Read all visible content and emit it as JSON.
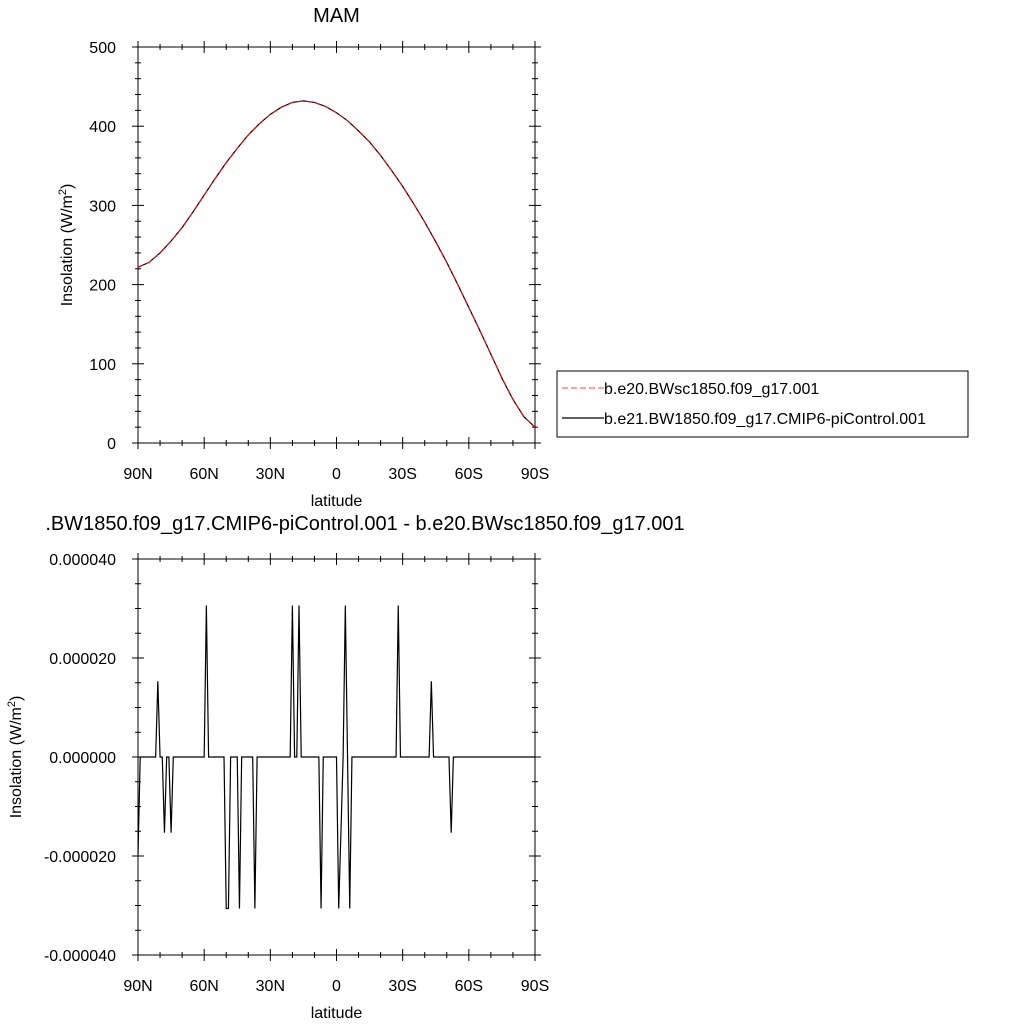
{
  "chart_data": [
    {
      "type": "line",
      "title": "MAM",
      "xlabel": "latitude",
      "ylabel": "Insolation (W/m",
      "ylabel_sup": "2",
      "ylabel_end": ")",
      "xlim": [
        90,
        -90
      ],
      "ylim": [
        0,
        500
      ],
      "xticks": [
        90,
        60,
        30,
        0,
        -30,
        -60,
        -90
      ],
      "xtick_labels": [
        "90N",
        "60N",
        "30N",
        "0",
        "30S",
        "60S",
        "90S"
      ],
      "yticks": [
        0,
        100,
        200,
        300,
        400,
        500
      ],
      "ytick_labels": [
        "0",
        "100",
        "200",
        "300",
        "400",
        "500"
      ],
      "x": [
        90,
        85,
        80,
        75,
        70,
        65,
        60,
        55,
        50,
        45,
        40,
        35,
        30,
        25,
        20,
        15,
        10,
        5,
        0,
        -5,
        -10,
        -15,
        -20,
        -25,
        -30,
        -35,
        -40,
        -45,
        -50,
        -55,
        -60,
        -65,
        -70,
        -75,
        -80,
        -85,
        -90
      ],
      "series": [
        {
          "name": "b.e20.BWsc1850.f09_g17.001",
          "color": "#ff0000",
          "dash": "dashed",
          "values": [
            222,
            228,
            240,
            255,
            272,
            292,
            313,
            334,
            354,
            372,
            389,
            403,
            415,
            424,
            430,
            432,
            430,
            425,
            417,
            407,
            394,
            380,
            363,
            344,
            324,
            302,
            279,
            254,
            228,
            200,
            171,
            142,
            112,
            82,
            55,
            33,
            20
          ]
        },
        {
          "name": "b.e21.BW1850.f09_g17.CMIP6-piControl.001",
          "color": "#000000",
          "dash": "solid",
          "values": [
            222,
            228,
            240,
            255,
            272,
            292,
            313,
            334,
            354,
            372,
            389,
            403,
            415,
            424,
            430,
            432,
            430,
            425,
            417,
            407,
            394,
            380,
            363,
            344,
            324,
            302,
            279,
            254,
            228,
            200,
            171,
            142,
            112,
            82,
            55,
            33,
            20
          ]
        }
      ],
      "legend": "right"
    },
    {
      "type": "line",
      "title": ".BW1850.f09_g17.CMIP6-piControl.001 - b.e20.BWsc1850.f09_g17.001",
      "xlabel": "latitude",
      "ylabel": "Insolation (W/m",
      "ylabel_sup": "2",
      "ylabel_end": ")",
      "xlim": [
        90,
        -90
      ],
      "ylim": [
        -4e-05,
        4e-05
      ],
      "xticks": [
        90,
        60,
        30,
        0,
        -30,
        -60,
        -90
      ],
      "xtick_labels": [
        "90N",
        "60N",
        "30N",
        "0",
        "30S",
        "60S",
        "90S"
      ],
      "yticks": [
        4e-05,
        2e-05,
        0,
        -2e-05,
        -4e-05
      ],
      "ytick_labels": [
        "0.000040",
        "0.000020",
        "0.000000",
        "-0.000020",
        "-0.000040"
      ],
      "x": [
        90,
        89,
        88,
        82,
        81,
        80,
        79,
        78,
        77,
        76,
        75,
        74,
        73,
        60,
        59,
        58,
        51,
        50,
        49,
        48,
        45,
        44,
        43,
        38,
        37,
        36,
        35,
        21,
        20,
        19,
        18,
        17,
        16,
        8,
        7,
        6,
        0,
        -1,
        -3,
        -4,
        -5,
        -6,
        -7,
        -8,
        -27,
        -28,
        -29,
        -42,
        -43,
        -44,
        -51,
        -52,
        -53,
        -90
      ],
      "series": [
        {
          "name": "",
          "color": "#000000",
          "dash": "solid",
          "values": [
            -2e-05,
            0,
            0,
            0,
            1.53e-05,
            0,
            0,
            -1.53e-05,
            0,
            0,
            -1.53e-05,
            0,
            0,
            0,
            3.06e-05,
            0,
            0,
            -3.06e-05,
            -3.06e-05,
            0,
            0,
            -3.06e-05,
            0,
            0,
            -3.06e-05,
            0,
            0,
            0,
            3.06e-05,
            0,
            0,
            3.06e-05,
            0,
            0,
            -3.06e-05,
            0,
            0,
            -3.06e-05,
            0,
            3.06e-05,
            0,
            -3.06e-05,
            0,
            0,
            0,
            3.06e-05,
            0,
            0,
            1.53e-05,
            0,
            0,
            -1.53e-05,
            0,
            0
          ]
        }
      ]
    }
  ]
}
